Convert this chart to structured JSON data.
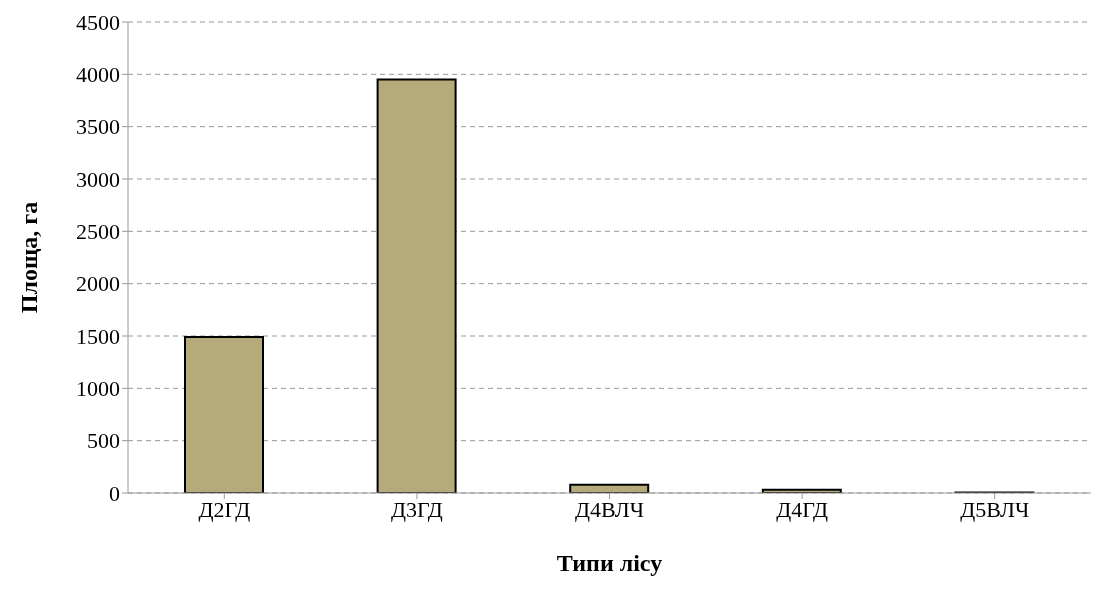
{
  "chart_data": {
    "type": "bar",
    "xlabel": "Типи лісу",
    "ylabel": "Площа, га",
    "categories": [
      "Д2ГД",
      "Д3ГД",
      "Д4ВЛЧ",
      "Д4ГД",
      "Д5ВЛЧ"
    ],
    "values": [
      1490,
      3950,
      80,
      30,
      5
    ],
    "color": "#b5aa7a",
    "ylim": [
      0,
      4500
    ],
    "yticks": [
      0,
      500,
      1000,
      1500,
      2000,
      2500,
      3000,
      3500,
      4000,
      4500
    ],
    "grid": "y"
  }
}
